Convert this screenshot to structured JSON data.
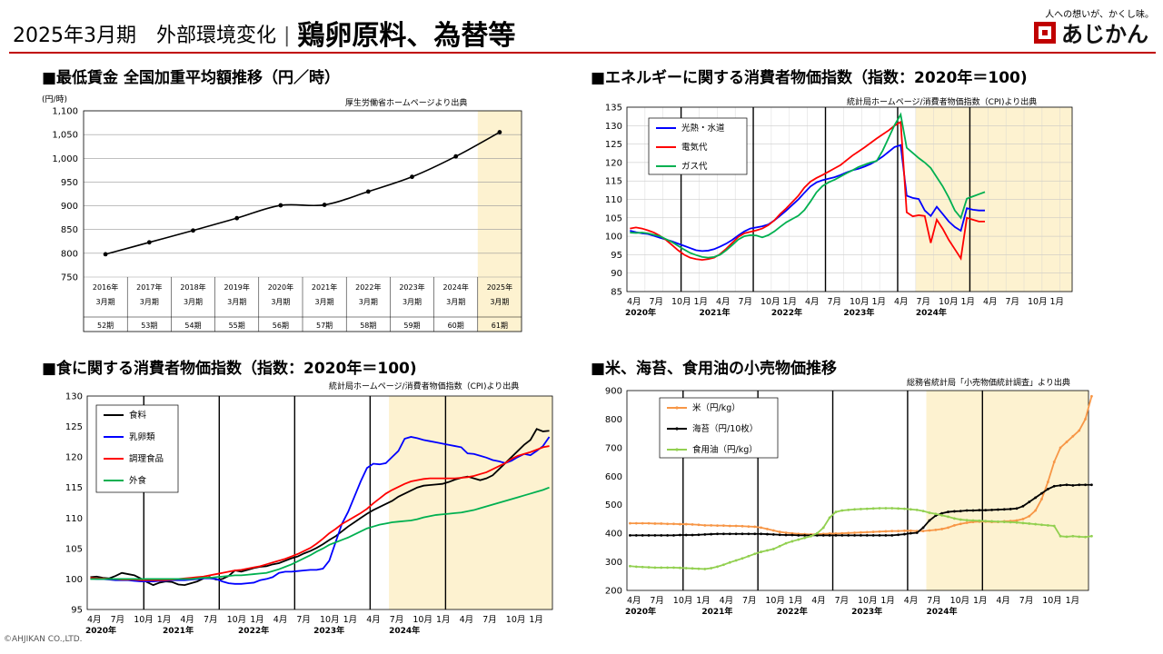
{
  "header": {
    "title_left": "2025年3月期　外部環境変化",
    "separator": "|",
    "title_main": "鶏卵原料、為替等",
    "tagline": "人への想いが、かくし味。",
    "logo_text": "あじかん"
  },
  "copyright": "©AHJIKAN CO.,LTD.",
  "theme": {
    "accent": "#c00000",
    "highlight": "#fdf2d0"
  },
  "chart_data": [
    {
      "id": "wage",
      "type": "line",
      "title": "■最低賃金 全国加重平均額推移（円／時）",
      "source": "厚生労働省ホームページより出典",
      "ylabel": "(円/時)",
      "ylim": [
        750,
        1100
      ],
      "yticks": [
        750,
        800,
        850,
        900,
        950,
        1000,
        1050,
        1100
      ],
      "yticklabels": [
        "750",
        "800",
        "850",
        "900",
        "950",
        "1,000",
        "1,050",
        "1,100"
      ],
      "categories": [
        {
          "year": "2016年",
          "period": "3月期",
          "term": "52期"
        },
        {
          "year": "2017年",
          "period": "3月期",
          "term": "53期"
        },
        {
          "year": "2018年",
          "period": "3月期",
          "term": "54期"
        },
        {
          "year": "2019年",
          "period": "3月期",
          "term": "55期"
        },
        {
          "year": "2020年",
          "period": "3月期",
          "term": "56期"
        },
        {
          "year": "2021年",
          "period": "3月期",
          "term": "57期"
        },
        {
          "year": "2022年",
          "period": "3月期",
          "term": "58期"
        },
        {
          "year": "2023年",
          "period": "3月期",
          "term": "59期"
        },
        {
          "year": "2024年",
          "period": "3月期",
          "term": "60期"
        },
        {
          "year": "2025年",
          "period": "3月期",
          "term": "61期"
        }
      ],
      "values": [
        798,
        823,
        848,
        874,
        901,
        902,
        930,
        961,
        1004,
        1055
      ],
      "highlight_last": true,
      "grid": true
    },
    {
      "id": "energy",
      "type": "line",
      "title": "■エネルギーに関する消費者物価指数（指数：2020年＝100)",
      "source": "統計局ホームページ/消費者物価指数（CPI)より出典",
      "ylim": [
        85,
        135
      ],
      "yticks": [
        85,
        90,
        95,
        100,
        105,
        110,
        115,
        120,
        125,
        130,
        135
      ],
      "xticklabels": [
        "4月",
        "7月",
        "10月",
        "1月",
        "4月",
        "7月",
        "10月",
        "1月",
        "4月",
        "7月",
        "10月",
        "1月",
        "4月",
        "7月",
        "10月",
        "1月",
        "4月",
        "7月",
        "10月",
        "1月"
      ],
      "yearlabels": [
        "2020年",
        "2021年",
        "2022年",
        "2023年",
        "2024年"
      ],
      "months": 60,
      "highlight_start": 48,
      "legend": "top-left",
      "series": [
        {
          "name": "光熱・水道",
          "color": "#0000ff",
          "values": [
            101.5,
            101.1,
            100.8,
            100.6,
            100.1,
            99.6,
            99.1,
            98.6,
            98.0,
            97.4,
            96.8,
            96.2,
            96.0,
            96.1,
            96.5,
            97.2,
            98.0,
            99.0,
            100.2,
            101.3,
            102.1,
            102.4,
            102.7,
            103.2,
            104.3,
            105.6,
            107.0,
            108.5,
            110.0,
            111.8,
            113.5,
            114.6,
            115.2,
            115.6,
            116.0,
            116.6,
            117.3,
            117.9,
            118.3,
            118.9,
            119.6,
            120.5,
            121.6,
            122.9,
            124.2,
            124.7,
            111.0,
            110.4,
            110.1,
            107.0,
            105.5,
            108.0,
            106.0,
            104.0,
            102.5,
            101.5,
            107.6,
            107.2,
            107.0,
            107.0
          ]
        },
        {
          "name": "電気代",
          "color": "#ff0000",
          "values": [
            102.1,
            102.4,
            102.1,
            101.6,
            101.0,
            100.1,
            99.0,
            97.6,
            96.2,
            95.0,
            94.2,
            93.8,
            93.6,
            93.8,
            94.2,
            95.2,
            96.6,
            98.2,
            99.8,
            100.8,
            101.2,
            101.6,
            102.1,
            103.0,
            104.3,
            106.1,
            107.6,
            109.3,
            111.0,
            113.2,
            114.8,
            115.8,
            116.6,
            117.5,
            118.4,
            119.3,
            120.6,
            121.9,
            123.0,
            124.1,
            125.3,
            126.5,
            127.6,
            128.7,
            130.0,
            131.0,
            106.5,
            105.4,
            105.7,
            105.5,
            98.2,
            104.5,
            102.0,
            99.0,
            96.5,
            94.0,
            105.0,
            104.5,
            104.0,
            104.0
          ]
        },
        {
          "name": "ガス代",
          "color": "#00b050",
          "values": [
            101.0,
            100.9,
            101.0,
            100.8,
            100.4,
            100.0,
            99.2,
            98.4,
            97.4,
            96.4,
            95.5,
            94.9,
            94.4,
            94.2,
            94.4,
            95.0,
            96.2,
            97.6,
            99.1,
            100.0,
            100.3,
            100.2,
            99.7,
            100.3,
            101.3,
            102.6,
            103.8,
            104.7,
            105.6,
            107.1,
            109.4,
            111.9,
            113.6,
            114.6,
            115.3,
            116.2,
            117.1,
            117.9,
            118.8,
            119.4,
            120.0,
            120.4,
            123.2,
            126.7,
            130.2,
            133.0,
            124.0,
            122.6,
            121.2,
            120.0,
            118.5,
            116.0,
            113.5,
            110.5,
            107.0,
            105.0,
            110.2,
            110.8,
            111.4,
            112.0
          ]
        }
      ]
    },
    {
      "id": "food",
      "type": "line",
      "title": "■食に関する消費者物価指数（指数：2020年＝100)",
      "source": "統計局ホームページ/消費者物価指数（CPI)より出典",
      "ylim": [
        95,
        130
      ],
      "yticks": [
        95,
        100,
        105,
        110,
        115,
        120,
        125,
        130
      ],
      "xticklabels": [
        "4月",
        "7月",
        "10月",
        "1月",
        "4月",
        "7月",
        "10月",
        "1月",
        "4月",
        "7月",
        "10月",
        "1月",
        "4月",
        "7月",
        "10月",
        "1月",
        "4月",
        "7月",
        "10月",
        "1月"
      ],
      "yearlabels": [
        "2020年",
        "2021年",
        "2022年",
        "2023年",
        "2024年"
      ],
      "months": 60,
      "highlight_start": 48,
      "legend": "top-left",
      "series": [
        {
          "name": "食料",
          "color": "#000000",
          "values": [
            100.3,
            100.4,
            100.2,
            100.1,
            100.5,
            101.0,
            100.8,
            100.6,
            100.1,
            99.5,
            99.0,
            99.4,
            99.6,
            99.5,
            99.1,
            99.0,
            99.3,
            99.6,
            100.1,
            100.3,
            99.9,
            100.0,
            100.5,
            101.4,
            101.2,
            101.5,
            101.8,
            102.0,
            102.1,
            102.4,
            102.6,
            103.0,
            103.4,
            103.7,
            104.2,
            104.6,
            105.1,
            105.7,
            106.4,
            107.0,
            107.8,
            108.6,
            109.3,
            110.0,
            110.7,
            111.3,
            111.8,
            112.3,
            112.8,
            113.5,
            114.0,
            114.5,
            115.0,
            115.3,
            115.4,
            115.5,
            115.6,
            115.9,
            116.3,
            116.6
          ]
        },
        {
          "name": "乳卵類",
          "color": "#0000ff",
          "values": [
            100.1,
            100.0,
            100.0,
            99.9,
            99.8,
            99.8,
            99.8,
            99.7,
            99.6,
            99.6,
            99.6,
            99.7,
            99.7,
            99.8,
            99.8,
            99.8,
            99.9,
            100.0,
            100.1,
            100.1,
            100.0,
            99.6,
            99.3,
            99.2,
            99.2,
            99.3,
            99.4,
            99.8,
            100.0,
            100.3,
            101.0,
            101.2,
            101.2,
            101.3,
            101.4,
            101.5,
            101.5,
            101.7,
            103.0,
            106.0,
            109.0,
            111.0,
            113.5,
            116.0,
            118.2,
            118.9,
            118.8,
            119.0,
            120.0,
            121.0,
            123.0,
            123.3,
            123.1,
            122.8,
            122.6,
            122.4,
            122.2,
            122.0,
            121.8,
            121.6
          ]
        },
        {
          "name": "調理食品",
          "color": "#ff0000",
          "values": [
            100.2,
            100.1,
            100.1,
            100.0,
            100.0,
            99.9,
            99.9,
            99.9,
            99.8,
            99.8,
            99.8,
            99.8,
            99.8,
            99.9,
            100.0,
            100.1,
            100.2,
            100.3,
            100.4,
            100.6,
            100.8,
            101.0,
            101.2,
            101.4,
            101.5,
            101.7,
            101.9,
            102.1,
            102.4,
            102.7,
            103.0,
            103.3,
            103.7,
            104.1,
            104.6,
            105.1,
            105.8,
            106.6,
            107.5,
            108.2,
            109.0,
            109.6,
            110.2,
            110.8,
            111.5,
            112.4,
            113.2,
            114.0,
            114.6,
            115.1,
            115.6,
            116.0,
            116.2,
            116.4,
            116.5,
            116.5,
            116.5,
            116.5,
            116.5,
            116.6
          ]
        },
        {
          "name": "外食",
          "color": "#00b050",
          "values": [
            100.0,
            100.0,
            100.0,
            100.0,
            100.0,
            100.0,
            100.0,
            100.0,
            100.0,
            100.0,
            100.0,
            100.0,
            100.0,
            100.0,
            100.0,
            100.0,
            100.0,
            100.1,
            100.2,
            100.2,
            100.3,
            100.4,
            100.5,
            100.6,
            100.6,
            100.7,
            100.8,
            100.9,
            101.0,
            101.3,
            101.6,
            102.0,
            102.4,
            102.9,
            103.4,
            103.9,
            104.5,
            105.0,
            105.6,
            106.0,
            106.4,
            106.8,
            107.3,
            107.8,
            108.3,
            108.6,
            108.9,
            109.1,
            109.3,
            109.4,
            109.5,
            109.6,
            109.8,
            110.1,
            110.3,
            110.5,
            110.6,
            110.7,
            110.8,
            110.9
          ]
        }
      ],
      "highlight_series_tail": [
        [
          116.8,
          116.5,
          116.2,
          116.5,
          117.0,
          118.0,
          119.0,
          120.0,
          121.0,
          122.0,
          122.8,
          124.6,
          124.2,
          124.3
        ],
        [
          120.6,
          120.5,
          120.2,
          119.9,
          119.5,
          119.3,
          119.0,
          119.4,
          120.0,
          120.5,
          120.3,
          121.0,
          121.8,
          123.3
        ],
        [
          116.7,
          116.9,
          117.2,
          117.5,
          118.0,
          118.5,
          119.0,
          119.7,
          120.2,
          120.5,
          120.8,
          121.2,
          121.6,
          121.8
        ],
        [
          111.1,
          111.3,
          111.6,
          111.9,
          112.2,
          112.5,
          112.8,
          113.1,
          113.4,
          113.7,
          114.0,
          114.3,
          114.6,
          115.0
        ]
      ]
    },
    {
      "id": "retail",
      "type": "line",
      "title": "■米、海苔、食用油の小売物価推移",
      "source": "総務省統計局「小売物価統計調査」より出典",
      "ylim": [
        200,
        900
      ],
      "yticks": [
        200,
        300,
        400,
        500,
        600,
        700,
        800,
        900
      ],
      "xticklabels": [
        "4月",
        "7月",
        "10月",
        "1月",
        "4月",
        "7月",
        "10月",
        "1月",
        "4月",
        "7月",
        "10月",
        "1月",
        "4月",
        "7月",
        "10月",
        "1月",
        "4月",
        "7月",
        "10月",
        "1月"
      ],
      "yearlabels": [
        "2020年",
        "2021年",
        "2022年",
        "2023年",
        "2024年"
      ],
      "months": 60,
      "highlight_start": 48,
      "legend": "top-left",
      "series": [
        {
          "name": "米（円/kg）",
          "color": "#f79646",
          "values": [
            435,
            435,
            435,
            435,
            434,
            434,
            433,
            433,
            432,
            432,
            431,
            430,
            428,
            428,
            427,
            427,
            426,
            426,
            425,
            424,
            423,
            420,
            415,
            410,
            405,
            402,
            400,
            398,
            397,
            396,
            397,
            398,
            399,
            399,
            400,
            401,
            402,
            403,
            404,
            405,
            406,
            407,
            408,
            408,
            409,
            409,
            408,
            408,
            410,
            412,
            415,
            420,
            428,
            433,
            437,
            440,
            441,
            441,
            440,
            440
          ]
        },
        {
          "name": "海苔（円/10枚）",
          "color": "#000000",
          "values": [
            393,
            393,
            393,
            393,
            393,
            393,
            393,
            393,
            394,
            394,
            394,
            395,
            396,
            397,
            398,
            398,
            398,
            398,
            398,
            398,
            398,
            398,
            397,
            396,
            395,
            394,
            394,
            393,
            393,
            393,
            393,
            393,
            393,
            393,
            393,
            393,
            393,
            393,
            393,
            393,
            393,
            393,
            393,
            395,
            397,
            400,
            402,
            420,
            445,
            462,
            470,
            475,
            477,
            478,
            480,
            480,
            481,
            481,
            482,
            483
          ]
        },
        {
          "name": "食用油（円/kg）",
          "color": "#92d050",
          "values": [
            285,
            283,
            282,
            281,
            280,
            280,
            280,
            280,
            279,
            278,
            277,
            276,
            275,
            278,
            283,
            290,
            298,
            305,
            312,
            320,
            328,
            335,
            340,
            345,
            355,
            365,
            372,
            378,
            384,
            390,
            400,
            420,
            455,
            475,
            480,
            482,
            484,
            485,
            486,
            487,
            488,
            488,
            488,
            487,
            486,
            484,
            482,
            478,
            472,
            468,
            463,
            458,
            452,
            448,
            446,
            445,
            444,
            443,
            442,
            441
          ]
        }
      ],
      "highlight_series_tail": [
        [
          442,
          443,
          445,
          450,
          460,
          480,
          520,
          580,
          650,
          700,
          720,
          740,
          760,
          800,
          880
        ],
        [
          484,
          485,
          487,
          495,
          510,
          525,
          540,
          555,
          565,
          568,
          570,
          568,
          570,
          570,
          570
        ],
        [
          440,
          439,
          438,
          436,
          434,
          432,
          430,
          428,
          426,
          390,
          388,
          390,
          388,
          387,
          390
        ]
      ]
    }
  ]
}
